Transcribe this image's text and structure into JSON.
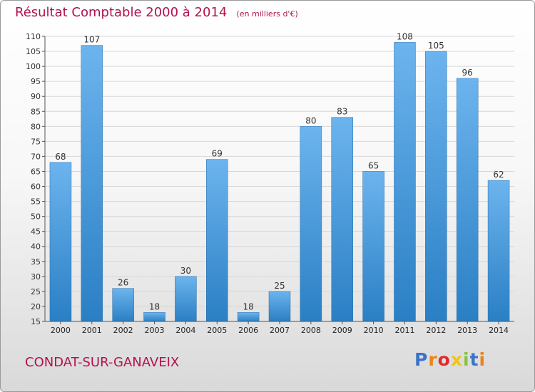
{
  "header": {
    "title": "Résultat Comptable 2000 à 2014",
    "unit_note": "(en milliers d'€)"
  },
  "footer": {
    "city": "CONDAT-SUR-GANAVEIX",
    "logo_text": "Proxiti",
    "logo_colors": [
      "#3b73c9",
      "#e9851c",
      "#e02a2a",
      "#f0c419",
      "#8bc23f",
      "#3b73c9",
      "#e9851c"
    ]
  },
  "colors": {
    "bar_top": "#6cb4ee",
    "bar_bottom": "#2a7fc4",
    "text": "#b1124f",
    "grid": "#d7d7d7"
  },
  "chart_data": {
    "type": "bar",
    "title": "Résultat Comptable 2000 à 2014",
    "subtitle": "(en milliers d'€)",
    "xlabel": "",
    "ylabel": "",
    "categories": [
      "2000",
      "2001",
      "2002",
      "2003",
      "2004",
      "2005",
      "2006",
      "2007",
      "2008",
      "2009",
      "2010",
      "2011",
      "2012",
      "2013",
      "2014"
    ],
    "values": [
      68,
      107,
      26,
      18,
      30,
      69,
      18,
      25,
      80,
      83,
      65,
      108,
      105,
      96,
      62
    ],
    "ylim": [
      15,
      110
    ],
    "yticks": [
      15,
      20,
      25,
      30,
      35,
      40,
      45,
      50,
      55,
      60,
      65,
      70,
      75,
      80,
      85,
      90,
      95,
      100,
      105,
      110
    ],
    "grid": true,
    "data_labels": true
  }
}
